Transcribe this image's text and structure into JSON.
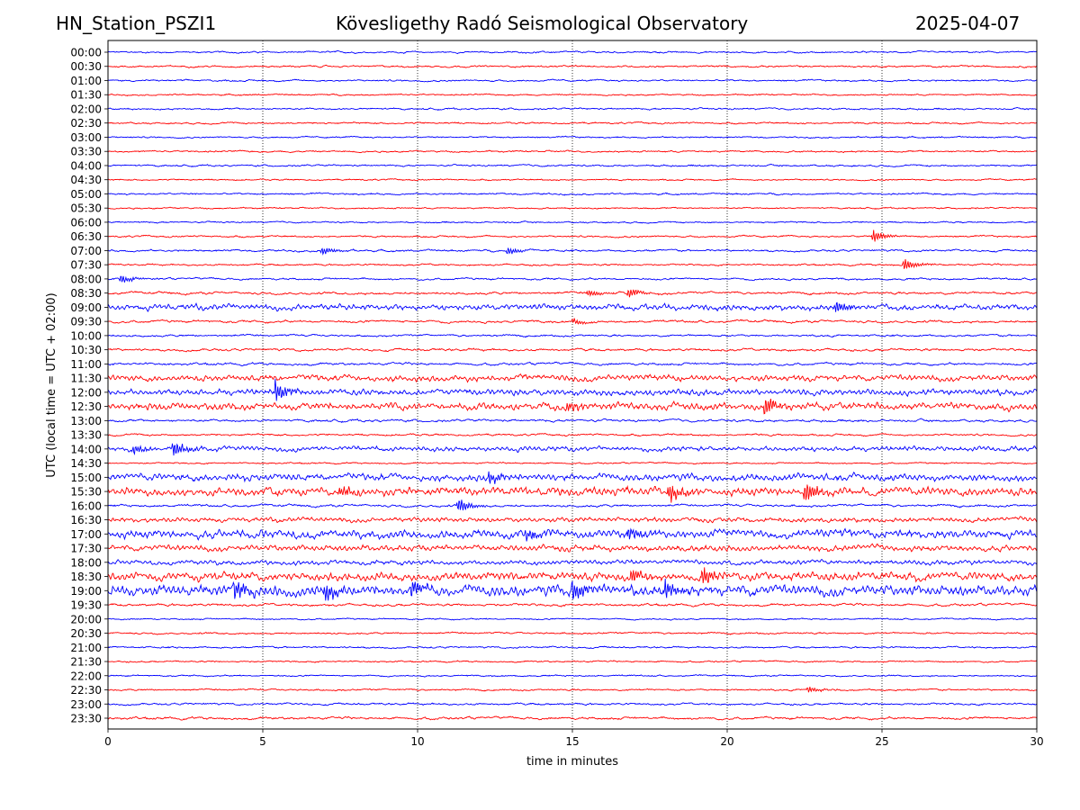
{
  "chart_data": {
    "type": "line",
    "title_left": "HN_Station_PSZI1",
    "title_center": "Kövesligethy Radó Seismological Observatory",
    "title_right": "2025-04-07",
    "xlabel": "time in minutes",
    "ylabel": "UTC (local time = UTC + 02:00)",
    "xlim": [
      0,
      30
    ],
    "xticks": [
      0,
      5,
      10,
      15,
      20,
      25,
      30
    ],
    "grid": "vertical dotted at x ticks",
    "colors": [
      "#0000ff",
      "#ff0000"
    ],
    "rows": [
      "00:00",
      "00:30",
      "01:00",
      "01:30",
      "02:00",
      "02:30",
      "03:00",
      "03:30",
      "04:00",
      "04:30",
      "05:00",
      "05:30",
      "06:00",
      "06:30",
      "07:00",
      "07:30",
      "08:00",
      "08:30",
      "09:00",
      "09:30",
      "10:00",
      "10:30",
      "11:00",
      "11:30",
      "12:00",
      "12:30",
      "13:00",
      "13:30",
      "14:00",
      "14:30",
      "15:00",
      "15:30",
      "16:00",
      "16:30",
      "17:00",
      "17:30",
      "18:00",
      "18:30",
      "19:00",
      "19:30",
      "20:00",
      "20:30",
      "21:00",
      "21:30",
      "22:00",
      "22:30",
      "23:00",
      "23:30"
    ],
    "noise_level": [
      1,
      1,
      1,
      0.8,
      1,
      1,
      0.8,
      1,
      1,
      0.8,
      1,
      0.8,
      0.8,
      1,
      1.2,
      1,
      1.2,
      1.5,
      2.5,
      1.5,
      1.2,
      1.5,
      1.5,
      2.5,
      2.5,
      3,
      1.5,
      1.2,
      2,
      0.8,
      3,
      3.5,
      1.5,
      2,
      3.5,
      2.5,
      2,
      3.5,
      4.5,
      1.5,
      0.8,
      1,
      1,
      0.8,
      0.8,
      1,
      1.2,
      1.5
    ],
    "events": [
      {
        "row": "06:30",
        "minute": 24.7,
        "amp": 8
      },
      {
        "row": "07:00",
        "minute": 6.9,
        "amp": 5
      },
      {
        "row": "07:00",
        "minute": 12.9,
        "amp": 5
      },
      {
        "row": "07:30",
        "minute": 25.7,
        "amp": 8
      },
      {
        "row": "08:00",
        "minute": 0.4,
        "amp": 5
      },
      {
        "row": "08:30",
        "minute": 15.5,
        "amp": 4
      },
      {
        "row": "08:30",
        "minute": 16.8,
        "amp": 6
      },
      {
        "row": "09:00",
        "minute": 23.5,
        "amp": 8
      },
      {
        "row": "09:30",
        "minute": 15.0,
        "amp": 4
      },
      {
        "row": "12:00",
        "minute": 5.4,
        "amp": 14
      },
      {
        "row": "12:30",
        "minute": 21.2,
        "amp": 12
      },
      {
        "row": "12:30",
        "minute": 14.8,
        "amp": 6
      },
      {
        "row": "14:00",
        "minute": 2.1,
        "amp": 10
      },
      {
        "row": "14:00",
        "minute": 0.8,
        "amp": 6
      },
      {
        "row": "15:00",
        "minute": 12.3,
        "amp": 7
      },
      {
        "row": "15:30",
        "minute": 22.5,
        "amp": 14
      },
      {
        "row": "15:30",
        "minute": 18.1,
        "amp": 12
      },
      {
        "row": "15:30",
        "minute": 7.5,
        "amp": 7
      },
      {
        "row": "16:00",
        "minute": 11.3,
        "amp": 10
      },
      {
        "row": "17:00",
        "minute": 13.5,
        "amp": 8
      },
      {
        "row": "17:00",
        "minute": 16.8,
        "amp": 8
      },
      {
        "row": "18:30",
        "minute": 19.2,
        "amp": 12
      },
      {
        "row": "18:30",
        "minute": 16.9,
        "amp": 10
      },
      {
        "row": "19:00",
        "minute": 15.0,
        "amp": 14
      },
      {
        "row": "19:00",
        "minute": 4.1,
        "amp": 12
      },
      {
        "row": "19:00",
        "minute": 7.0,
        "amp": 12
      },
      {
        "row": "19:00",
        "minute": 9.8,
        "amp": 12
      },
      {
        "row": "19:00",
        "minute": 18.0,
        "amp": 12
      },
      {
        "row": "22:30",
        "minute": 22.6,
        "amp": 4
      }
    ]
  }
}
